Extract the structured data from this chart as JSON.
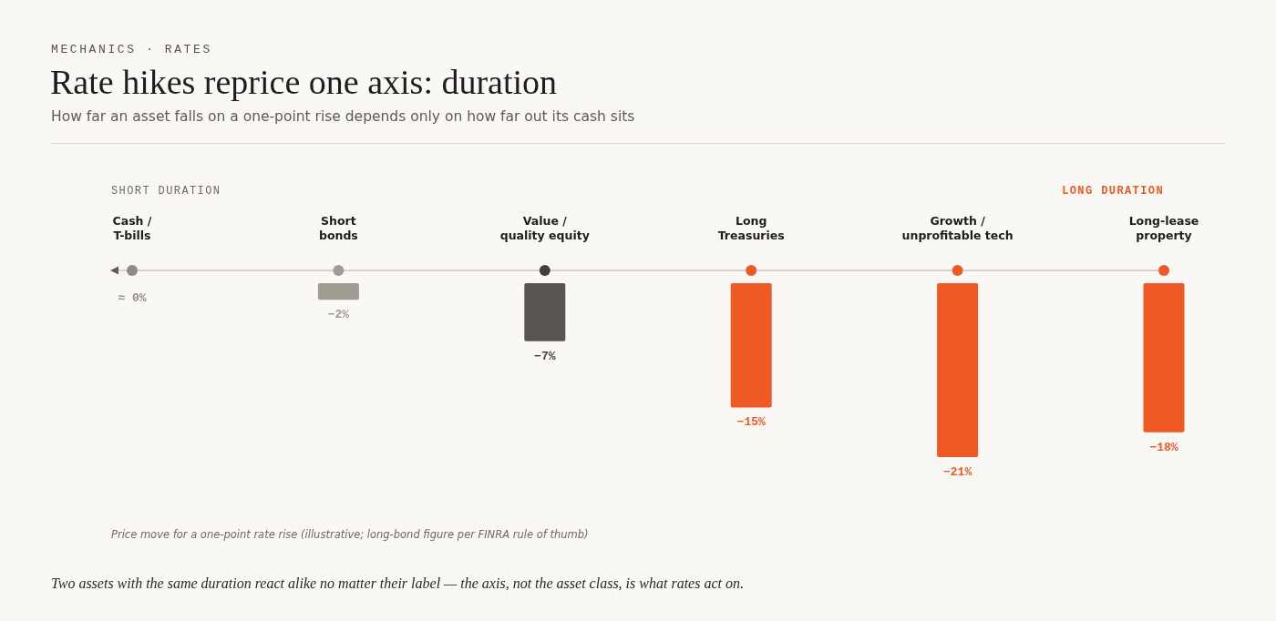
{
  "chart_data": {
    "type": "bar",
    "title": "Rate hikes reprice one axis: duration",
    "subtitle": "How far an asset falls on a one-point rise depends only on how far out its cash sits",
    "annotations": [
      "MECHANICS · RATES",
      "SHORT DURATION",
      "LONG DURATION",
      "Price move for a one-point rate rise (illustrative; long-bond figure per FINRA rule of thumb)",
      "Two assets with the same duration react alike no matter their label — the axis, not the asset class, is what rates act on."
    ],
    "categories": [
      "Cash /\nT-bills",
      "Short\nbonds",
      "Value /\nquality equity",
      "Long\nTreasuries",
      "Growth /\nunprofitable tech",
      "Long-lease\nproperty"
    ],
    "values": [
      0,
      -2,
      -7,
      -15,
      -21,
      -18
    ],
    "colors": [
      "#8f8b85",
      "#a09c94",
      "#5a5550",
      "#ef5a24",
      "#ef5a24",
      "#ef5a24"
    ],
    "value_labels": [
      "≈ 0%",
      "−2%",
      "−7%",
      "−15%",
      "−21%",
      "−18%"
    ]
  }
}
